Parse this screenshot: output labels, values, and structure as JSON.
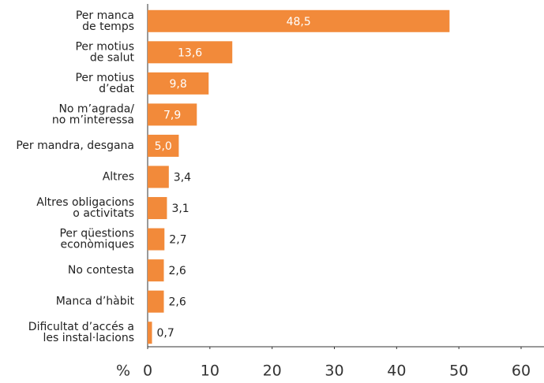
{
  "chart_data": {
    "type": "bar",
    "orientation": "horizontal",
    "categories": [
      "Per manca\nde temps",
      "Per motius\nde salut",
      "Per motius\nd’edat",
      "No m’agrada/\nno m’interessa",
      "Per mandra, desgana",
      "Altres",
      "Altres obligacions\no activitats",
      "Per qüestions\neconòmiques",
      "No contesta",
      "Manca d’hàbit",
      "Dificultat d’accés a\nles instal·lacions"
    ],
    "values": [
      48.5,
      13.6,
      9.8,
      7.9,
      5.0,
      3.4,
      3.1,
      2.7,
      2.6,
      2.6,
      0.7
    ],
    "value_labels": [
      "48,5",
      "13,6",
      "9,8",
      "7,9",
      "5,0",
      "3,4",
      "3,1",
      "2,7",
      "2,6",
      "2,6",
      "0,7"
    ],
    "color": "#f28a3a",
    "xlabel": "%",
    "xlim": [
      0,
      60
    ],
    "xticks": [
      0,
      10,
      20,
      30,
      40,
      50,
      60
    ]
  }
}
